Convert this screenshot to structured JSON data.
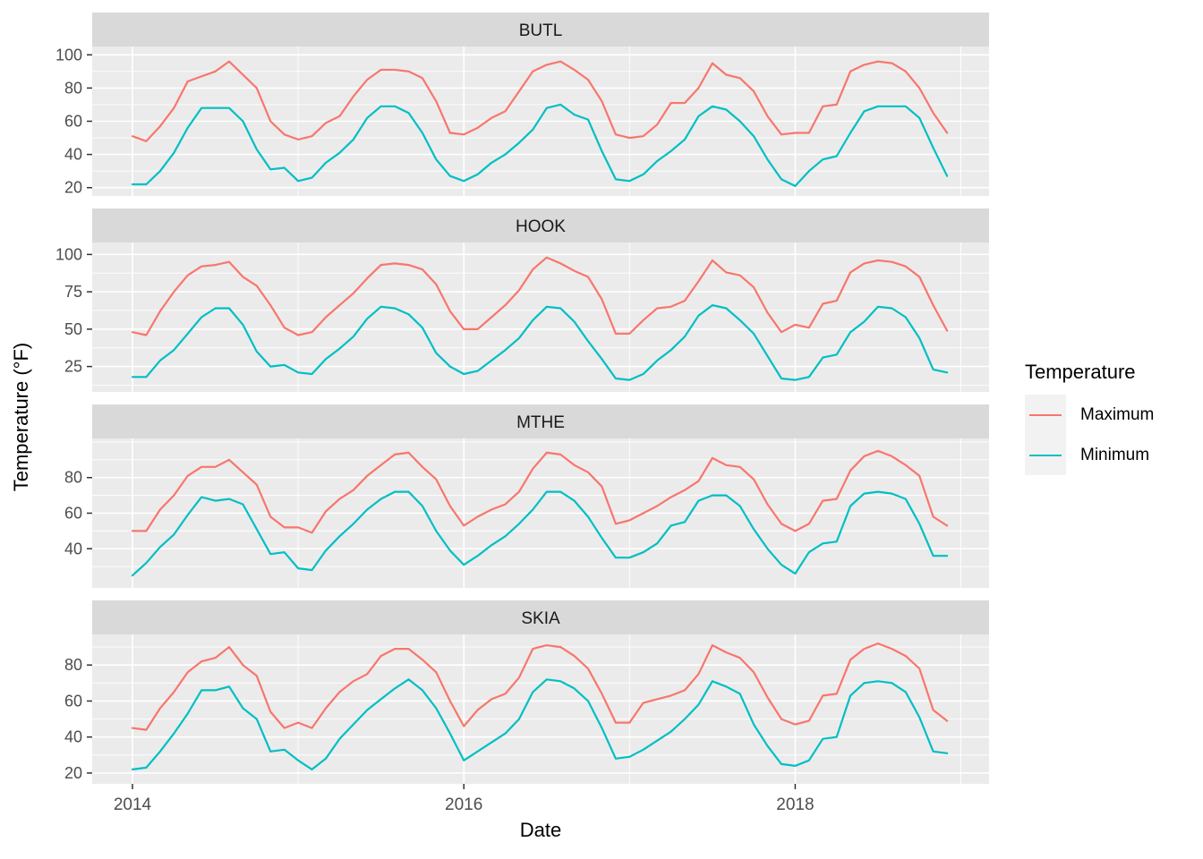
{
  "axes": {
    "x_title": "Date",
    "y_title": "Temperature (°F)",
    "x_tick_labels": [
      "2014",
      "2016",
      "2018"
    ]
  },
  "legend": {
    "title": "Temperature",
    "entries": [
      {
        "label": "Maximum",
        "color": "#F8766D"
      },
      {
        "label": "Minimum",
        "color": "#00BFC4"
      }
    ]
  },
  "style": {
    "panel_bg": "#EBEBEB",
    "strip_bg": "#D9D9D9",
    "grid_color": "#FFFFFF",
    "tick_color": "#333333",
    "tick_label_color": "#4D4D4D",
    "strip_text_color": "#1A1A1A",
    "max_color": "#F8766D",
    "min_color": "#00BFC4"
  },
  "chart_data": {
    "type": "line",
    "x_start": "2014-01",
    "x_frequency": "monthly",
    "x_axis_breaks": [
      2014,
      2016,
      2018
    ],
    "x_axis_minor_breaks": [
      2015,
      2017,
      2019
    ],
    "xlim": [
      2013.757,
      2019.171
    ],
    "legend_position": "right",
    "grid": true,
    "facets": [
      {
        "label": "BUTL",
        "y_ticks": [
          20,
          40,
          60,
          80,
          100
        ],
        "y_minor": [
          30,
          50,
          70,
          90
        ],
        "ylim": [
          15,
          105
        ],
        "series": [
          {
            "name": "Maximum",
            "values": [
              51,
              48,
              57,
              68,
              84,
              87,
              90,
              96,
              88,
              80,
              60,
              52,
              49,
              51,
              59,
              63,
              75,
              85,
              91,
              91,
              90,
              86,
              72,
              53,
              52,
              56,
              62,
              66,
              78,
              90,
              94,
              96,
              91,
              85,
              72,
              52,
              50,
              51,
              58,
              71,
              71,
              80,
              95,
              88,
              86,
              78,
              63,
              52,
              53,
              53,
              69,
              70,
              90,
              94,
              96,
              95,
              90,
              80,
              65,
              53
            ]
          },
          {
            "name": "Minimum",
            "values": [
              22,
              22,
              30,
              41,
              56,
              68,
              68,
              68,
              60,
              43,
              31,
              32,
              24,
              26,
              35,
              41,
              49,
              62,
              69,
              69,
              65,
              53,
              37,
              27,
              24,
              28,
              35,
              40,
              47,
              55,
              68,
              70,
              64,
              61,
              42,
              25,
              24,
              28,
              36,
              42,
              49,
              63,
              69,
              67,
              60,
              51,
              37,
              25,
              21,
              30,
              37,
              39,
              53,
              66,
              69,
              69,
              69,
              62,
              44,
              27
            ]
          }
        ]
      },
      {
        "label": "HOOK",
        "y_ticks": [
          25,
          50,
          75,
          100
        ],
        "y_minor": [
          12.5,
          37.5,
          62.5,
          87.5
        ],
        "ylim": [
          8,
          108
        ],
        "series": [
          {
            "name": "Maximum",
            "values": [
              48,
              46,
              62,
              75,
              86,
              92,
              93,
              95,
              85,
              79,
              66,
              51,
              46,
              48,
              58,
              66,
              74,
              84,
              93,
              94,
              93,
              90,
              80,
              62,
              50,
              50,
              58,
              66,
              76,
              90,
              98,
              94,
              89,
              85,
              70,
              47,
              47,
              56,
              64,
              65,
              69,
              82,
              96,
              88,
              86,
              78,
              61,
              48,
              53,
              51,
              67,
              69,
              88,
              94,
              96,
              95,
              92,
              85,
              66,
              49
            ]
          },
          {
            "name": "Minimum",
            "values": [
              18,
              18,
              29,
              36,
              47,
              58,
              64,
              64,
              53,
              35,
              25,
              26,
              21,
              20,
              30,
              37,
              45,
              57,
              65,
              64,
              60,
              51,
              34,
              25,
              20,
              22,
              29,
              36,
              44,
              56,
              65,
              64,
              55,
              42,
              30,
              17,
              16,
              20,
              29,
              36,
              45,
              59,
              66,
              64,
              56,
              47,
              32,
              17,
              16,
              18,
              31,
              33,
              48,
              55,
              65,
              64,
              58,
              44,
              23,
              21
            ]
          }
        ]
      },
      {
        "label": "MTHE",
        "y_ticks": [
          40,
          60,
          80
        ],
        "y_minor": [
          30,
          50,
          70,
          90,
          100
        ],
        "ylim": [
          18,
          102
        ],
        "series": [
          {
            "name": "Maximum",
            "values": [
              50,
              50,
              62,
              70,
              81,
              86,
              86,
              90,
              83,
              76,
              58,
              52,
              52,
              49,
              61,
              68,
              73,
              81,
              87,
              93,
              94,
              86,
              79,
              64,
              53,
              58,
              62,
              65,
              72,
              85,
              94,
              93,
              87,
              83,
              75,
              54,
              56,
              60,
              64,
              69,
              73,
              78,
              91,
              87,
              86,
              79,
              65,
              54,
              50,
              54,
              67,
              68,
              84,
              92,
              95,
              92,
              87,
              81,
              58,
              53
            ]
          },
          {
            "name": "Minimum",
            "values": [
              25,
              32,
              41,
              48,
              59,
              69,
              67,
              68,
              65,
              51,
              37,
              38,
              29,
              28,
              39,
              47,
              54,
              62,
              68,
              72,
              72,
              64,
              50,
              39,
              31,
              36,
              42,
              47,
              54,
              62,
              72,
              72,
              67,
              58,
              46,
              35,
              35,
              38,
              43,
              53,
              55,
              67,
              70,
              70,
              64,
              51,
              40,
              31,
              26,
              38,
              43,
              44,
              64,
              71,
              72,
              71,
              68,
              54,
              36,
              36
            ]
          }
        ]
      },
      {
        "label": "SKIA",
        "y_ticks": [
          20,
          40,
          60,
          80
        ],
        "y_minor": [
          30,
          50,
          70,
          90
        ],
        "ylim": [
          14,
          97
        ],
        "series": [
          {
            "name": "Maximum",
            "values": [
              45,
              44,
              56,
              65,
              76,
              82,
              84,
              90,
              80,
              74,
              54,
              45,
              48,
              45,
              56,
              65,
              71,
              75,
              85,
              89,
              89,
              83,
              76,
              60,
              46,
              55,
              61,
              64,
              73,
              89,
              91,
              90,
              85,
              78,
              64,
              48,
              48,
              59,
              61,
              63,
              66,
              75,
              91,
              87,
              84,
              76,
              62,
              50,
              47,
              49,
              63,
              64,
              83,
              89,
              92,
              89,
              85,
              78,
              55,
              49
            ]
          },
          {
            "name": "Minimum",
            "values": [
              22,
              23,
              32,
              42,
              53,
              66,
              66,
              68,
              56,
              50,
              32,
              33,
              27,
              22,
              28,
              39,
              47,
              55,
              61,
              67,
              72,
              66,
              56,
              42,
              27,
              32,
              37,
              42,
              50,
              65,
              72,
              71,
              67,
              60,
              45,
              28,
              29,
              33,
              38,
              43,
              50,
              58,
              71,
              68,
              64,
              47,
              35,
              25,
              24,
              27,
              39,
              40,
              63,
              70,
              71,
              70,
              65,
              51,
              32,
              31
            ]
          }
        ]
      }
    ]
  }
}
